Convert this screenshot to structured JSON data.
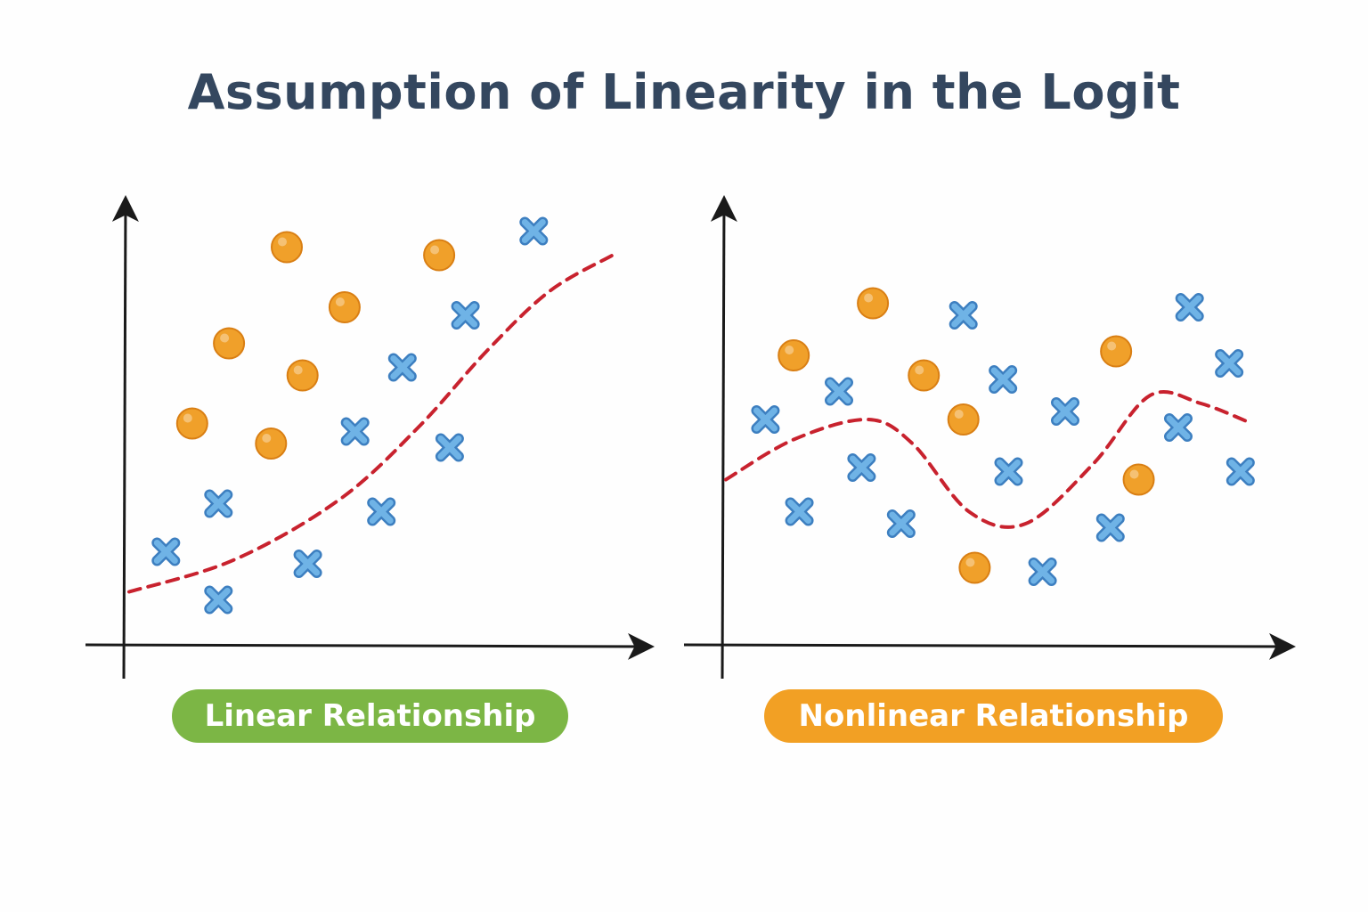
{
  "title": "Assumption of Linearity in the Logit",
  "colors": {
    "title": "#34475f",
    "axis": "#1a1a1a",
    "orange_point": "#f0a02a",
    "orange_point_edge": "#d97f14",
    "blue_marker": "#6fb3e6",
    "blue_marker_edge": "#3d7fc0",
    "boundary": "#c8222e",
    "linear_badge": "#7cb645",
    "nonlinear_badge": "#f2a024"
  },
  "panels": [
    {
      "id": "linear",
      "label": "Linear Relationship",
      "badge_color": "#7cb645",
      "marker_icons": [
        "orange-circle-icon",
        "blue-cross-icon"
      ],
      "orange_points": [
        [
          0.3,
          0.95
        ],
        [
          0.59,
          0.93
        ],
        [
          0.19,
          0.71
        ],
        [
          0.41,
          0.8
        ],
        [
          0.33,
          0.63
        ],
        [
          0.12,
          0.51
        ],
        [
          0.27,
          0.46
        ]
      ],
      "blue_points": [
        [
          0.77,
          0.99
        ],
        [
          0.64,
          0.78
        ],
        [
          0.52,
          0.65
        ],
        [
          0.43,
          0.49
        ],
        [
          0.61,
          0.45
        ],
        [
          0.17,
          0.31
        ],
        [
          0.48,
          0.29
        ],
        [
          0.07,
          0.19
        ],
        [
          0.34,
          0.16
        ],
        [
          0.17,
          0.07
        ]
      ],
      "boundary": [
        [
          0.0,
          0.09
        ],
        [
          0.2,
          0.17
        ],
        [
          0.4,
          0.32
        ],
        [
          0.55,
          0.5
        ],
        [
          0.68,
          0.69
        ],
        [
          0.8,
          0.84
        ],
        [
          0.92,
          0.93
        ]
      ]
    },
    {
      "id": "nonlinear",
      "label": "Nonlinear Relationship",
      "badge_color": "#f2a024",
      "marker_icons": [
        "orange-circle-icon",
        "blue-cross-icon"
      ],
      "orange_points": [
        [
          0.26,
          0.81
        ],
        [
          0.12,
          0.68
        ],
        [
          0.35,
          0.63
        ],
        [
          0.69,
          0.69
        ],
        [
          0.42,
          0.52
        ],
        [
          0.73,
          0.37
        ],
        [
          0.44,
          0.15
        ]
      ],
      "blue_points": [
        [
          0.42,
          0.78
        ],
        [
          0.82,
          0.8
        ],
        [
          0.2,
          0.59
        ],
        [
          0.49,
          0.62
        ],
        [
          0.89,
          0.66
        ],
        [
          0.07,
          0.52
        ],
        [
          0.6,
          0.54
        ],
        [
          0.8,
          0.5
        ],
        [
          0.24,
          0.4
        ],
        [
          0.5,
          0.39
        ],
        [
          0.91,
          0.39
        ],
        [
          0.13,
          0.29
        ],
        [
          0.31,
          0.26
        ],
        [
          0.68,
          0.25
        ],
        [
          0.56,
          0.14
        ]
      ],
      "boundary": [
        [
          0.0,
          0.37
        ],
        [
          0.12,
          0.47
        ],
        [
          0.25,
          0.52
        ],
        [
          0.33,
          0.46
        ],
        [
          0.43,
          0.29
        ],
        [
          0.53,
          0.26
        ],
        [
          0.65,
          0.41
        ],
        [
          0.75,
          0.58
        ],
        [
          0.84,
          0.56
        ],
        [
          0.93,
          0.51
        ]
      ]
    }
  ]
}
